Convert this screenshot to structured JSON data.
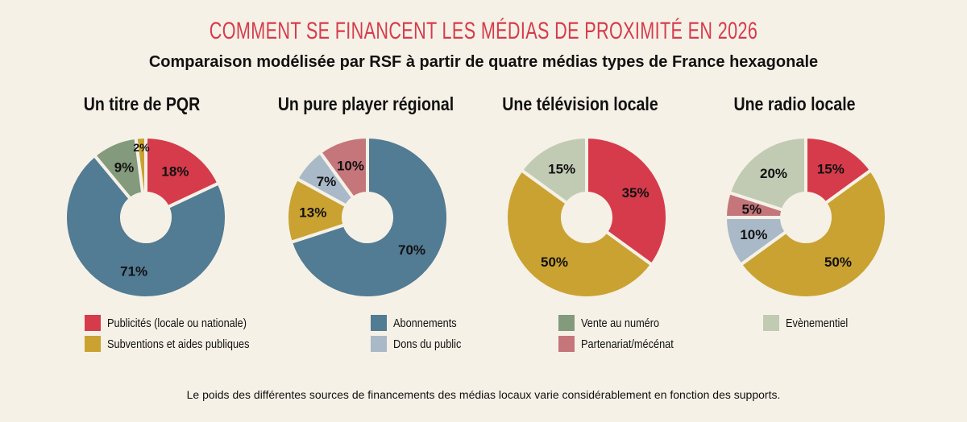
{
  "title": "COMMENT SE FINANCENT LES MÉDIAS DE PROXIMITÉ EN 2026",
  "subtitle": "Comparaison modélisée par RSF à partir de quatre médias types de France hexagonale",
  "footer": "Le poids des différentes sources de financements des médias locaux varie considérablement en fonction des supports.",
  "categories": {
    "pub": {
      "label": "Publicités (locale ou nationale)",
      "color": "#d63b4c"
    },
    "sub": {
      "label": "Subventions et aides publiques",
      "color": "#c9a232"
    },
    "abo": {
      "label": "Abonnements",
      "color": "#527b94"
    },
    "dons": {
      "label": "Dons du public",
      "color": "#a9b9c8"
    },
    "vente": {
      "label": "Vente au numéro",
      "color": "#839a7c"
    },
    "part": {
      "label": "Partenariat/mécénat",
      "color": "#c5767b"
    },
    "even": {
      "label": "Evènementiel",
      "color": "#c1cbb4"
    }
  },
  "chart_data": [
    {
      "type": "pie",
      "title": "Un titre de PQR",
      "slices": [
        {
          "cat": "pub",
          "value": 18
        },
        {
          "cat": "abo",
          "value": 71
        },
        {
          "cat": "vente",
          "value": 9
        },
        {
          "cat": "sub",
          "value": 2
        }
      ]
    },
    {
      "type": "pie",
      "title": "Un pure player régional",
      "slices": [
        {
          "cat": "abo",
          "value": 70
        },
        {
          "cat": "sub",
          "value": 13
        },
        {
          "cat": "dons",
          "value": 7
        },
        {
          "cat": "part",
          "value": 10
        }
      ]
    },
    {
      "type": "pie",
      "title": "Une télévision locale",
      "slices": [
        {
          "cat": "pub",
          "value": 35
        },
        {
          "cat": "sub",
          "value": 50
        },
        {
          "cat": "even",
          "value": 15
        }
      ]
    },
    {
      "type": "pie",
      "title": "Une radio locale",
      "slices": [
        {
          "cat": "pub",
          "value": 15
        },
        {
          "cat": "sub",
          "value": 50
        },
        {
          "cat": "dons",
          "value": 10
        },
        {
          "cat": "part",
          "value": 5
        },
        {
          "cat": "even",
          "value": 20
        }
      ]
    }
  ],
  "legend": [
    [
      "pub",
      "sub"
    ],
    [
      "abo",
      "dons"
    ],
    [
      "vente",
      "part"
    ],
    [
      "even"
    ]
  ]
}
